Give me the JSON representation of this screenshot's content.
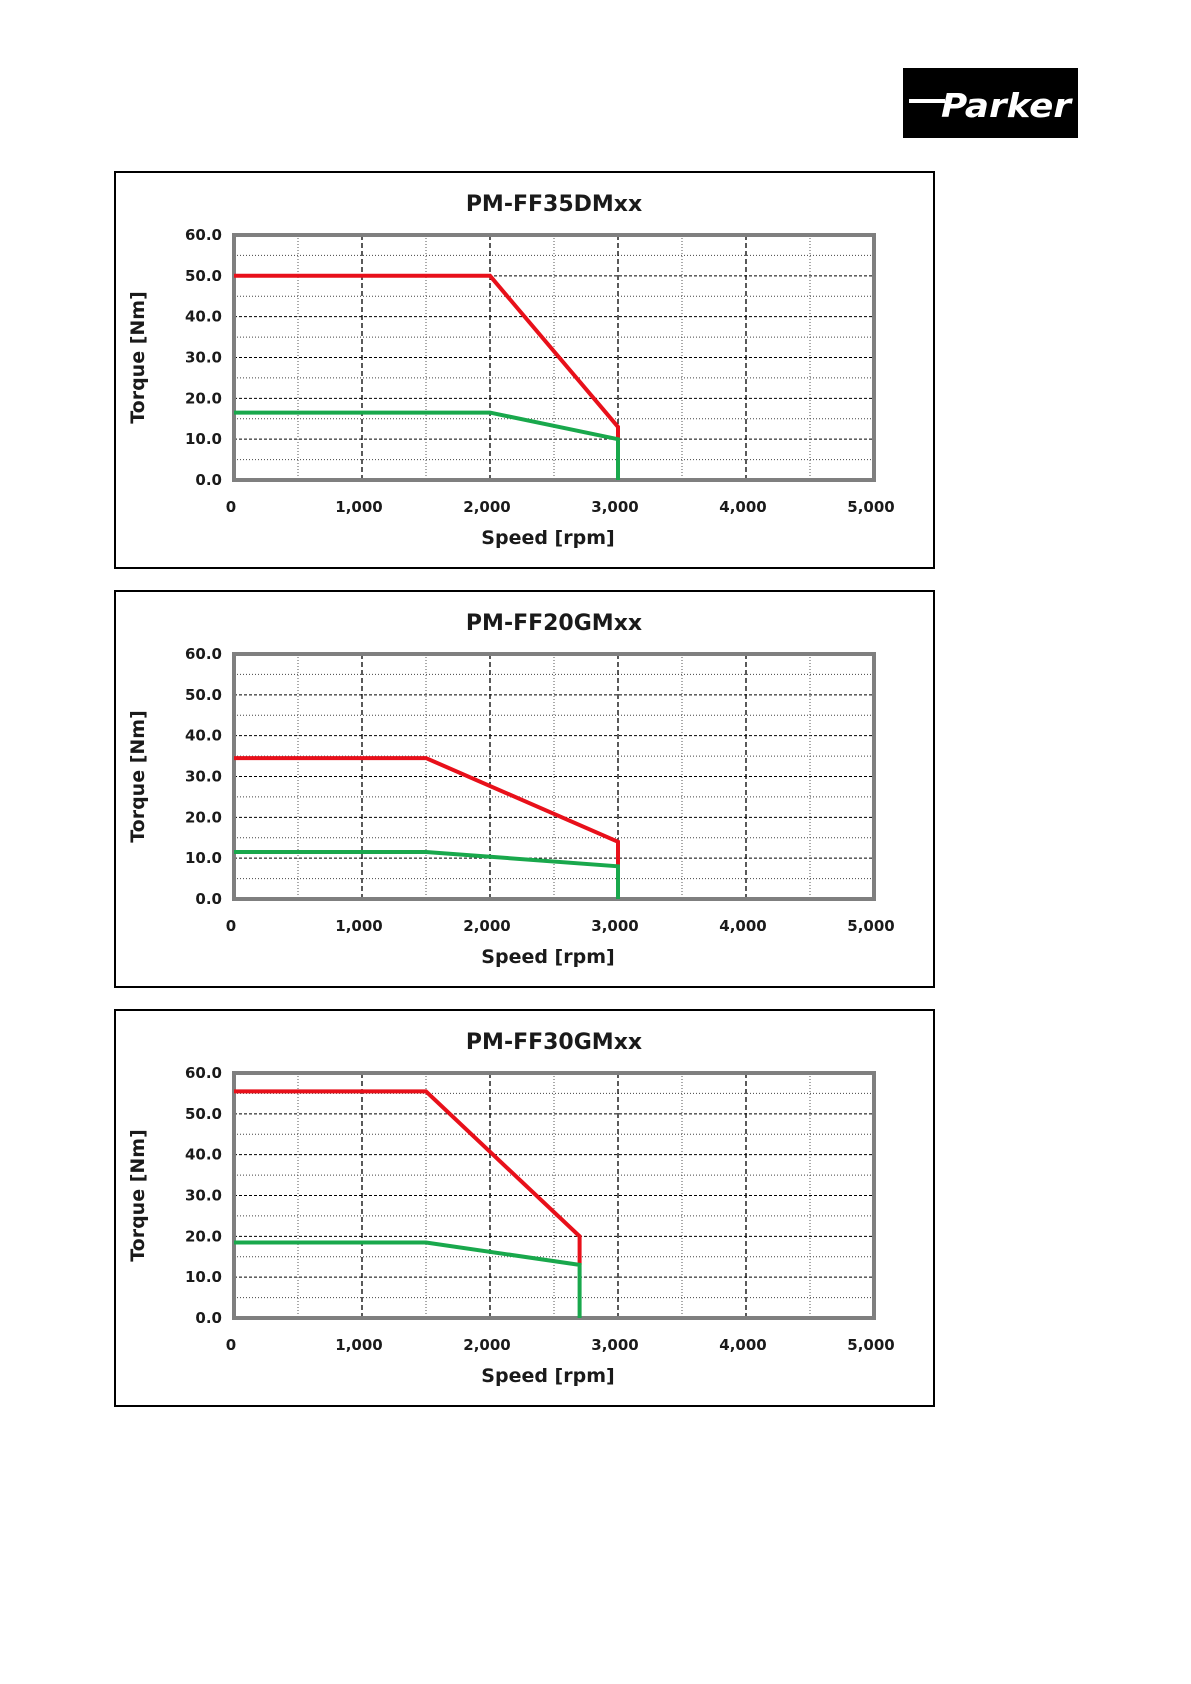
{
  "logo": {
    "text": "Parker",
    "bg_color": "#000000",
    "fg_color": "#ffffff"
  },
  "colors": {
    "peak": "#e8101a",
    "continuous": "#19a84c",
    "grid": "#000000",
    "frame": "#7f7f7f"
  },
  "chart_data": [
    {
      "type": "line",
      "title": "PM-FF35DMxx",
      "xlabel": "Speed [rpm]",
      "ylabel": "Torque [Nm]",
      "xlim": [
        0,
        5000
      ],
      "ylim": [
        0,
        60
      ],
      "xticks": [
        "0",
        "1,000",
        "2,000",
        "3,000",
        "4,000",
        "5,000"
      ],
      "yticks": [
        "0.0",
        "10.0",
        "20.0",
        "30.0",
        "40.0",
        "50.0",
        "60.0"
      ],
      "grid": true,
      "series": [
        {
          "role": "peak",
          "x": [
            0,
            2000,
            3000,
            3000
          ],
          "y": [
            50,
            50,
            13,
            10
          ]
        },
        {
          "role": "continuous",
          "x": [
            0,
            2000,
            3000,
            3000
          ],
          "y": [
            16.5,
            16.5,
            10,
            0
          ]
        }
      ]
    },
    {
      "type": "line",
      "title": "PM-FF20GMxx",
      "xlabel": "Speed [rpm]",
      "ylabel": "Torque [Nm]",
      "xlim": [
        0,
        5000
      ],
      "ylim": [
        0,
        60
      ],
      "xticks": [
        "0",
        "1,000",
        "2,000",
        "3,000",
        "4,000",
        "5,000"
      ],
      "yticks": [
        "0.0",
        "10.0",
        "20.0",
        "30.0",
        "40.0",
        "50.0",
        "60.0"
      ],
      "grid": true,
      "series": [
        {
          "role": "peak",
          "x": [
            0,
            1500,
            3000,
            3000
          ],
          "y": [
            34.5,
            34.5,
            14,
            8
          ]
        },
        {
          "role": "continuous",
          "x": [
            0,
            1500,
            3000,
            3000
          ],
          "y": [
            11.5,
            11.5,
            8,
            0
          ]
        }
      ]
    },
    {
      "type": "line",
      "title": "PM-FF30GMxx",
      "xlabel": "Speed [rpm]",
      "ylabel": "Torque [Nm]",
      "xlim": [
        0,
        5000
      ],
      "ylim": [
        0,
        60
      ],
      "xticks": [
        "0",
        "1,000",
        "2,000",
        "3,000",
        "4,000",
        "5,000"
      ],
      "yticks": [
        "0.0",
        "10.0",
        "20.0",
        "30.0",
        "40.0",
        "50.0",
        "60.0"
      ],
      "grid": true,
      "series": [
        {
          "role": "peak",
          "x": [
            0,
            1500,
            2700,
            2700
          ],
          "y": [
            55.5,
            55.5,
            20,
            13
          ]
        },
        {
          "role": "continuous",
          "x": [
            0,
            1500,
            2700,
            2700
          ],
          "y": [
            18.5,
            18.5,
            13,
            0
          ]
        }
      ]
    }
  ]
}
